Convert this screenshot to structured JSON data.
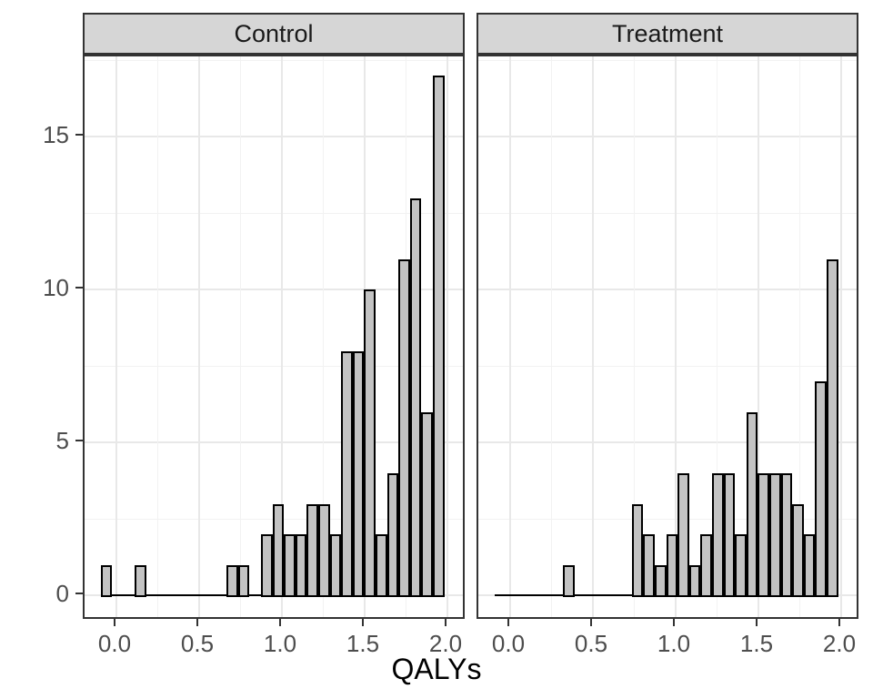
{
  "chart_data": {
    "type": "bar",
    "subtype": "faceted-histogram",
    "title": "",
    "xlabel": "QALYs",
    "ylabel": "",
    "grid": true,
    "legend": "none",
    "bins": {
      "start": -0.095,
      "width": 0.0692,
      "count": 30
    },
    "facets": [
      {
        "label": "Control",
        "counts": [
          1,
          0,
          0,
          1,
          0,
          0,
          0,
          0,
          0,
          0,
          0,
          1,
          1,
          0,
          2,
          3,
          2,
          2,
          3,
          3,
          2,
          8,
          8,
          10,
          2,
          4,
          11,
          13,
          6,
          17
        ]
      },
      {
        "label": "Treatment",
        "counts": [
          0,
          0,
          0,
          0,
          0,
          0,
          1,
          0,
          0,
          0,
          0,
          0,
          3,
          2,
          1,
          2,
          4,
          1,
          2,
          4,
          4,
          2,
          6,
          4,
          4,
          4,
          3,
          2,
          7,
          11
        ]
      }
    ],
    "x_ticks": {
      "values": [
        0,
        0.5,
        1,
        1.5,
        2
      ],
      "labels": [
        "0.0",
        "0.5",
        "1.0",
        "1.5",
        "2.0"
      ]
    },
    "x_minor_ticks": [
      0.25,
      0.75,
      1.25,
      1.75
    ],
    "y_ticks": {
      "values": [
        0,
        5,
        10,
        15
      ],
      "labels": [
        "0",
        "5",
        "10",
        "15"
      ]
    },
    "y_minor_ticks": [
      2.5,
      7.5,
      12.5,
      17.5
    ],
    "xlim": [
      -0.1923,
      2.1154
    ],
    "ylim": [
      -0.82,
      17.63
    ]
  },
  "colors": {
    "bar_fill": "#C3C3C3",
    "bar_stroke": "#000000",
    "strip_fill": "#D6D6D6",
    "border": "#333333",
    "grid_major": "#E8E8E8",
    "grid_minor": "#F2F2F2",
    "axis_text": "#4D4D4D",
    "strip_text": "#1A1A1A",
    "title_text": "#000000"
  }
}
